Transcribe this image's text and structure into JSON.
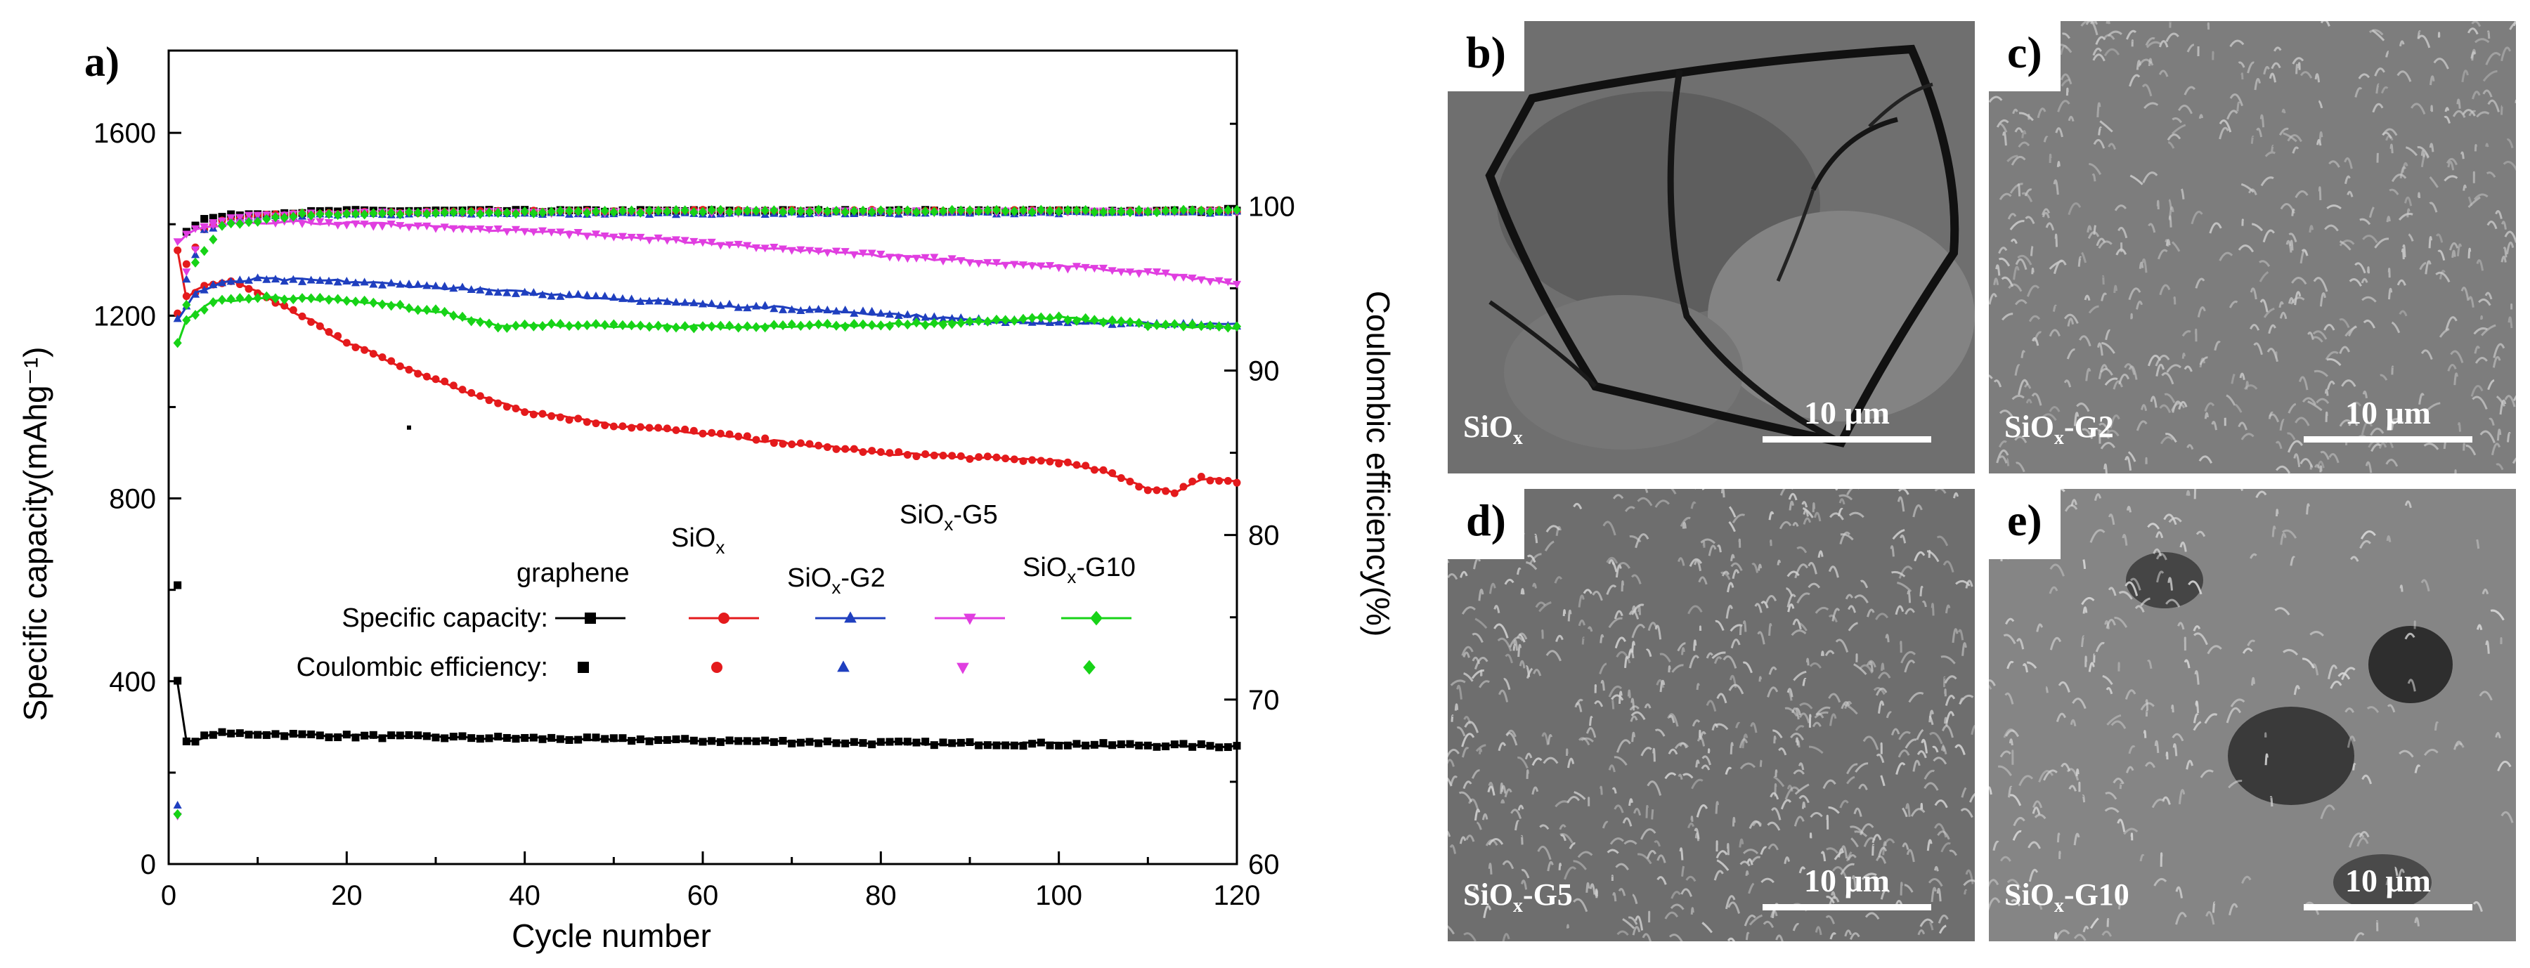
{
  "chart_data": {
    "type": "line",
    "panel_label": "a)",
    "xlabel": "Cycle number",
    "ylabel": "Specific capacity(mAhg⁻¹)",
    "y2label": "Coulombic efficiency(%)",
    "xlim": [
      0,
      120
    ],
    "ylim": [
      0,
      1780
    ],
    "y2lim": [
      60,
      109.45
    ],
    "xticks": [
      "0",
      "20",
      "40",
      "60",
      "80",
      "100",
      "120"
    ],
    "yticks": [
      "0",
      "400",
      "800",
      "1200",
      "1600"
    ],
    "y2ticks": [
      "60",
      "70",
      "80",
      "90",
      "100"
    ],
    "legend": {
      "header_capacity": "Specific capacity:",
      "header_efficiency": "Coulombic efficiency:",
      "names": [
        "graphene",
        "SiOx",
        "SiOx-G2",
        "SiOx-G5",
        "SiOx-G10"
      ]
    },
    "series": [
      {
        "name": "graphene",
        "color": "#000000",
        "marker": "square",
        "capacity": [
          [
            1,
            400
          ],
          [
            2,
            265
          ],
          [
            5,
            285
          ],
          [
            10,
            285
          ],
          [
            20,
            280
          ],
          [
            40,
            275
          ],
          [
            60,
            270
          ],
          [
            80,
            265
          ],
          [
            100,
            262
          ],
          [
            120,
            258
          ]
        ],
        "efficiency": [
          [
            1,
            77
          ],
          [
            2,
            98.5
          ],
          [
            4,
            99.2
          ],
          [
            8,
            99.5
          ],
          [
            20,
            99.7
          ],
          [
            60,
            99.7
          ],
          [
            120,
            99.7
          ]
        ]
      },
      {
        "name": "SiOx",
        "color": "#e41a1c",
        "marker": "circle",
        "capacity": [
          [
            1,
            1340
          ],
          [
            2,
            1240
          ],
          [
            4,
            1265
          ],
          [
            7,
            1275
          ],
          [
            10,
            1250
          ],
          [
            15,
            1200
          ],
          [
            20,
            1140
          ],
          [
            30,
            1060
          ],
          [
            40,
            990
          ],
          [
            50,
            960
          ],
          [
            60,
            945
          ],
          [
            70,
            920
          ],
          [
            80,
            900
          ],
          [
            90,
            890
          ],
          [
            100,
            880
          ],
          [
            105,
            860
          ],
          [
            110,
            820
          ],
          [
            113,
            815
          ],
          [
            116,
            845
          ],
          [
            120,
            835
          ]
        ],
        "efficiency": [
          [
            1,
            93.5
          ],
          [
            2,
            96.5
          ],
          [
            4,
            98.6
          ],
          [
            6,
            99.1
          ],
          [
            10,
            99.4
          ],
          [
            20,
            99.6
          ],
          [
            60,
            99.7
          ],
          [
            120,
            99.7
          ]
        ]
      },
      {
        "name": "SiOx-G2",
        "color": "#1f3fbf",
        "marker": "triangle",
        "capacity": [
          [
            1,
            1190
          ],
          [
            3,
            1250
          ],
          [
            6,
            1270
          ],
          [
            10,
            1280
          ],
          [
            20,
            1275
          ],
          [
            40,
            1250
          ],
          [
            60,
            1225
          ],
          [
            80,
            1205
          ],
          [
            90,
            1190
          ],
          [
            100,
            1185
          ],
          [
            120,
            1180
          ]
        ],
        "efficiency": [
          [
            1,
            63.5
          ],
          [
            2,
            95.5
          ],
          [
            4,
            98.5
          ],
          [
            8,
            99.3
          ],
          [
            20,
            99.5
          ],
          [
            120,
            99.6
          ]
        ]
      },
      {
        "name": "SiOx-G5",
        "color": "#e03ee0",
        "marker": "triangle-down",
        "capacity": [
          [
            1,
            1360
          ],
          [
            3,
            1390
          ],
          [
            8,
            1405
          ],
          [
            15,
            1405
          ],
          [
            30,
            1395
          ],
          [
            50,
            1375
          ],
          [
            70,
            1345
          ],
          [
            90,
            1320
          ],
          [
            110,
            1295
          ],
          [
            120,
            1270
          ]
        ],
        "efficiency": [
          [
            1,
            63
          ],
          [
            2,
            96
          ],
          [
            4,
            98.8
          ],
          [
            8,
            99.4
          ],
          [
            20,
            99.6
          ],
          [
            120,
            99.7
          ]
        ]
      },
      {
        "name": "SiOx-G10",
        "color": "#17d317",
        "marker": "diamond",
        "capacity": [
          [
            1,
            1140
          ],
          [
            2,
            1190
          ],
          [
            5,
            1230
          ],
          [
            10,
            1240
          ],
          [
            20,
            1235
          ],
          [
            30,
            1210
          ],
          [
            37,
            1175
          ],
          [
            45,
            1180
          ],
          [
            60,
            1175
          ],
          [
            80,
            1180
          ],
          [
            90,
            1185
          ],
          [
            100,
            1195
          ],
          [
            110,
            1180
          ],
          [
            120,
            1175
          ]
        ],
        "efficiency": [
          [
            1,
            63
          ],
          [
            2,
            94
          ],
          [
            3,
            96.5
          ],
          [
            6,
            98.8
          ],
          [
            15,
            99.5
          ],
          [
            60,
            99.7
          ],
          [
            120,
            99.7
          ]
        ]
      }
    ]
  },
  "sem_panels": [
    {
      "label": "b)",
      "sample": "SiOx",
      "scale": "10 μm"
    },
    {
      "label": "c)",
      "sample": "SiOx-G2",
      "scale": "10 μm"
    },
    {
      "label": "d)",
      "sample": "SiOx-G5",
      "scale": "10 μm"
    },
    {
      "label": "e)",
      "sample": "SiOx-G10",
      "scale": "10 μm"
    }
  ]
}
